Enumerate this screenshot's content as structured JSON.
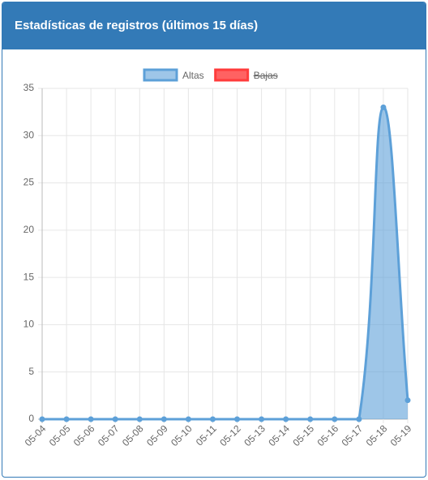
{
  "chart_data": {
    "type": "line",
    "title": "Estadísticas de registros (últimos 15 días)",
    "categories": [
      "05-04",
      "05-05",
      "05-06",
      "05-07",
      "05-08",
      "05-09",
      "05-10",
      "05-11",
      "05-12",
      "05-13",
      "05-14",
      "05-15",
      "05-16",
      "05-17",
      "05-18",
      "05-19"
    ],
    "series": [
      {
        "name": "Altas",
        "color": "#5da0d8",
        "values": [
          0,
          0,
          0,
          0,
          0,
          0,
          0,
          0,
          0,
          0,
          0,
          0,
          0,
          0,
          33,
          2
        ]
      },
      {
        "name": "Bajas",
        "color": "#ff3b3b",
        "hidden": true,
        "values": [
          null,
          null,
          null,
          null,
          null,
          null,
          null,
          null,
          null,
          null,
          null,
          null,
          null,
          null,
          null,
          null
        ]
      }
    ],
    "ylim": [
      0,
      35
    ],
    "yticks": [
      0,
      5,
      10,
      15,
      20,
      25,
      30,
      35
    ],
    "grid": true,
    "legend": "top"
  }
}
